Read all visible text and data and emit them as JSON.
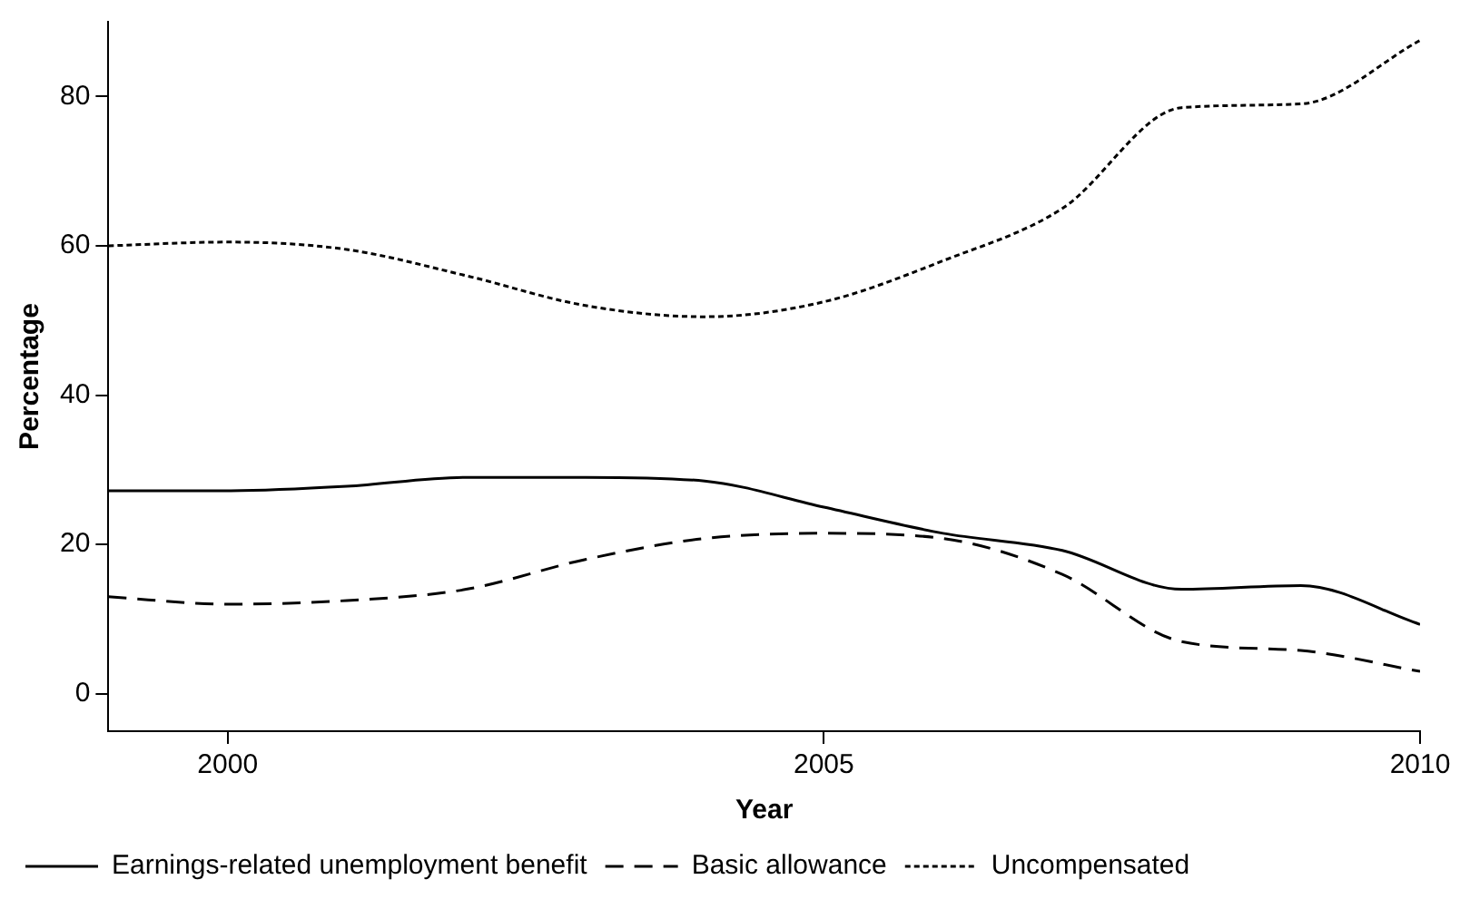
{
  "chart_data": {
    "type": "line",
    "xlabel": "Year",
    "ylabel": "Percentage",
    "x": [
      1999,
      2000,
      2001,
      2002,
      2003,
      2004,
      2005,
      2006,
      2007,
      2008,
      2009,
      2010
    ],
    "xlim": [
      1999,
      2010
    ],
    "xticks": [
      2000,
      2005,
      2010
    ],
    "ylim": [
      -5,
      90
    ],
    "yticks": [
      0,
      20,
      40,
      60,
      80
    ],
    "grid": false,
    "legend": "bottom",
    "marker": "none",
    "series": [
      {
        "name": "Earnings-related unemployment benefit",
        "color": "#000000",
        "line_style": "solid",
        "values": [
          27.2,
          27.2,
          27.8,
          29,
          29,
          28.5,
          25,
          21.5,
          19.2,
          14,
          14.5,
          9.3
        ]
      },
      {
        "name": "Basic allowance",
        "color": "#000000",
        "line_style": "dashed",
        "values": [
          13,
          12,
          12.5,
          14,
          18,
          20.8,
          21.5,
          20.8,
          16,
          7,
          5.8,
          3
        ]
      },
      {
        "name": "Uncompensated",
        "color": "#000000",
        "line_style": "dotted",
        "values": [
          60,
          60.5,
          59.5,
          56,
          52,
          50.5,
          52.5,
          58,
          65,
          78.5,
          79,
          87.5
        ]
      }
    ]
  }
}
